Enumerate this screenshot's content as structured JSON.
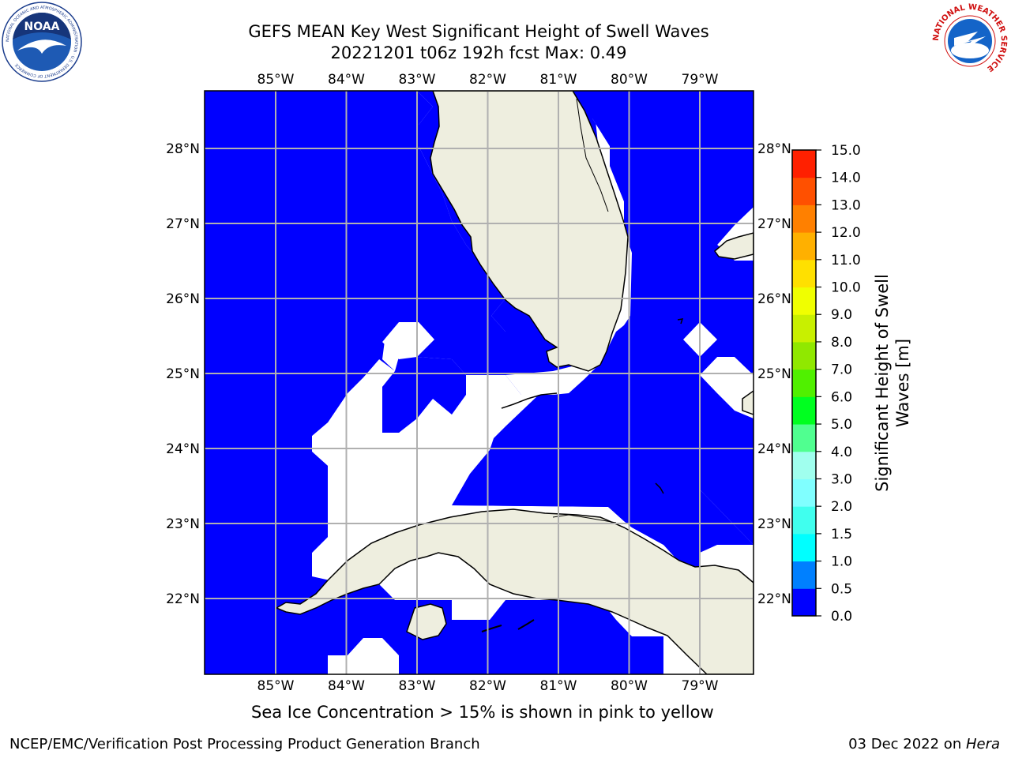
{
  "header": {
    "title_line1": "GEFS MEAN Key West Significant Height of Swell Waves",
    "title_line2": "20221201 t06z 192h fcst   Max: 0.49"
  },
  "logos": {
    "left": {
      "name": "noaa-logo",
      "text": "NOAA",
      "ring_text": "NATIONAL OCEANIC AND ATMOSPHERIC ADMINISTRATION · U.S. DEPARTMENT OF COMMERCE"
    },
    "right": {
      "name": "nws-logo",
      "ring_text": "NATIONAL WEATHER SERVICE"
    }
  },
  "map": {
    "lon_ticks": [
      "85°W",
      "84°W",
      "83°W",
      "82°W",
      "81°W",
      "80°W",
      "79°W"
    ],
    "lat_ticks": [
      "28°N",
      "27°N",
      "26°N",
      "25°N",
      "24°N",
      "23°N",
      "22°N"
    ],
    "colors": {
      "ocean": "#0000ff",
      "land": "#eeeedf",
      "low_swell": "#ffffff",
      "grid": "#b0b0b0",
      "coast": "#000000"
    }
  },
  "colorbar": {
    "label_line1": "Significant Height of Swell",
    "label_line2": "Waves [m]",
    "ticks": [
      "0.0",
      "0.5",
      "1.0",
      "1.5",
      "2.0",
      "3.0",
      "4.0",
      "5.0",
      "6.0",
      "7.0",
      "8.0",
      "9.0",
      "10.0",
      "11.0",
      "12.0",
      "13.0",
      "14.0",
      "15.0"
    ],
    "colors": [
      "#0000ff",
      "#0080ff",
      "#00ffff",
      "#40ffee",
      "#80ffff",
      "#a0ffee",
      "#50ff90",
      "#00ff20",
      "#50f000",
      "#90e800",
      "#c8f000",
      "#f0ff00",
      "#ffe000",
      "#ffb000",
      "#ff8000",
      "#ff5000",
      "#ff2000",
      "#ff0000"
    ]
  },
  "captions": {
    "sea_ice_note": "Sea Ice Concentration > 15% is shown in pink to yellow"
  },
  "footer": {
    "left": "NCEP/EMC/Verification Post Processing Product Generation Branch",
    "right_prefix": "03 Dec 2022 on ",
    "right_machine": "Hera"
  }
}
